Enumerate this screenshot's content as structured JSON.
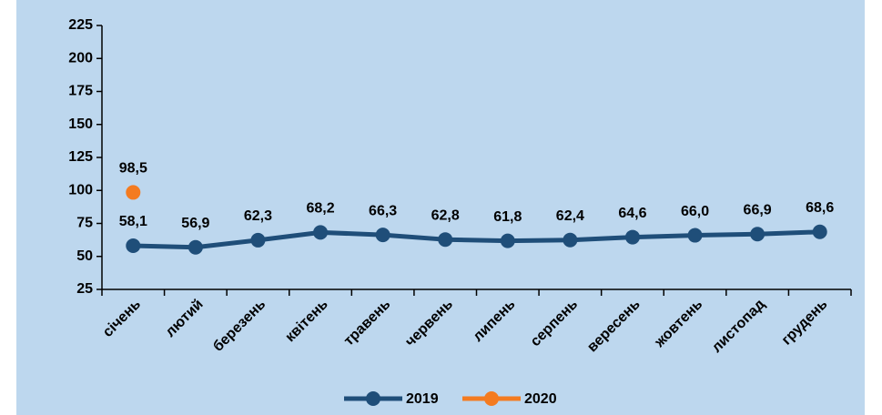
{
  "chart_data": {
    "type": "line",
    "categories": [
      "січень",
      "лютий",
      "березень",
      "квітень",
      "травень",
      "червень",
      "липень",
      "серпень",
      "вересень",
      "жовтень",
      "листопад",
      "грудень"
    ],
    "series": [
      {
        "name": "2019",
        "color": "#1f4e79",
        "values": [
          58.1,
          56.9,
          62.3,
          68.2,
          66.3,
          62.8,
          61.8,
          62.4,
          64.6,
          66.0,
          66.9,
          68.6
        ],
        "value_labels": [
          "58,1",
          "56,9",
          "62,3",
          "68,2",
          "66,3",
          "62,8",
          "61,8",
          "62,4",
          "64,6",
          "66,0",
          "66,9",
          "68,6"
        ]
      },
      {
        "name": "2020",
        "color": "#f47b20",
        "values": [
          98.5,
          null,
          null,
          null,
          null,
          null,
          null,
          null,
          null,
          null,
          null,
          null
        ],
        "value_labels": [
          "98,5",
          null,
          null,
          null,
          null,
          null,
          null,
          null,
          null,
          null,
          null,
          null
        ]
      }
    ],
    "ylim": [
      25,
      225
    ],
    "yticks": [
      25,
      50,
      75,
      100,
      125,
      150,
      175,
      200,
      225
    ],
    "legend": "bottom"
  }
}
